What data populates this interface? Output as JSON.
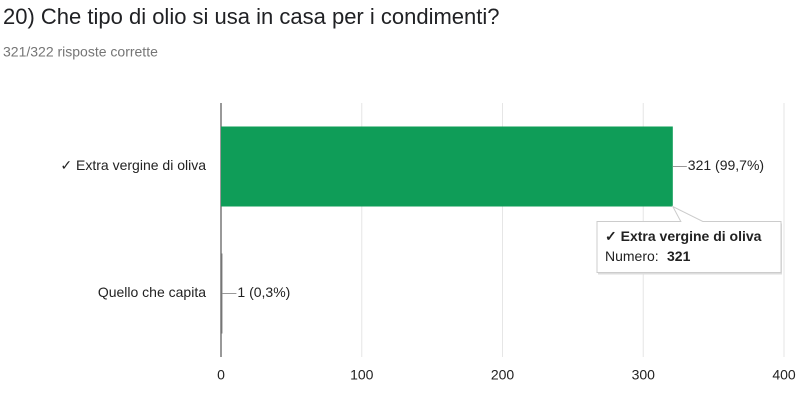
{
  "chart_data": {
    "type": "bar",
    "orientation": "horizontal",
    "title": "20) Che tipo di olio si usa in casa per i condimenti?",
    "subtitle": "321/322 risposte corrette",
    "categories": [
      "✓ Extra vergine di oliva",
      "Quello che capita"
    ],
    "values": [
      321,
      1
    ],
    "value_labels": [
      "321 (99,7%)",
      "1 (0,3%)"
    ],
    "colors": [
      "#0f9d58",
      "#757575"
    ],
    "xlim": [
      0,
      400
    ],
    "xticks": [
      0,
      100,
      200,
      300,
      400
    ],
    "grid": true,
    "tooltip": {
      "label": "Numero:"
    }
  }
}
